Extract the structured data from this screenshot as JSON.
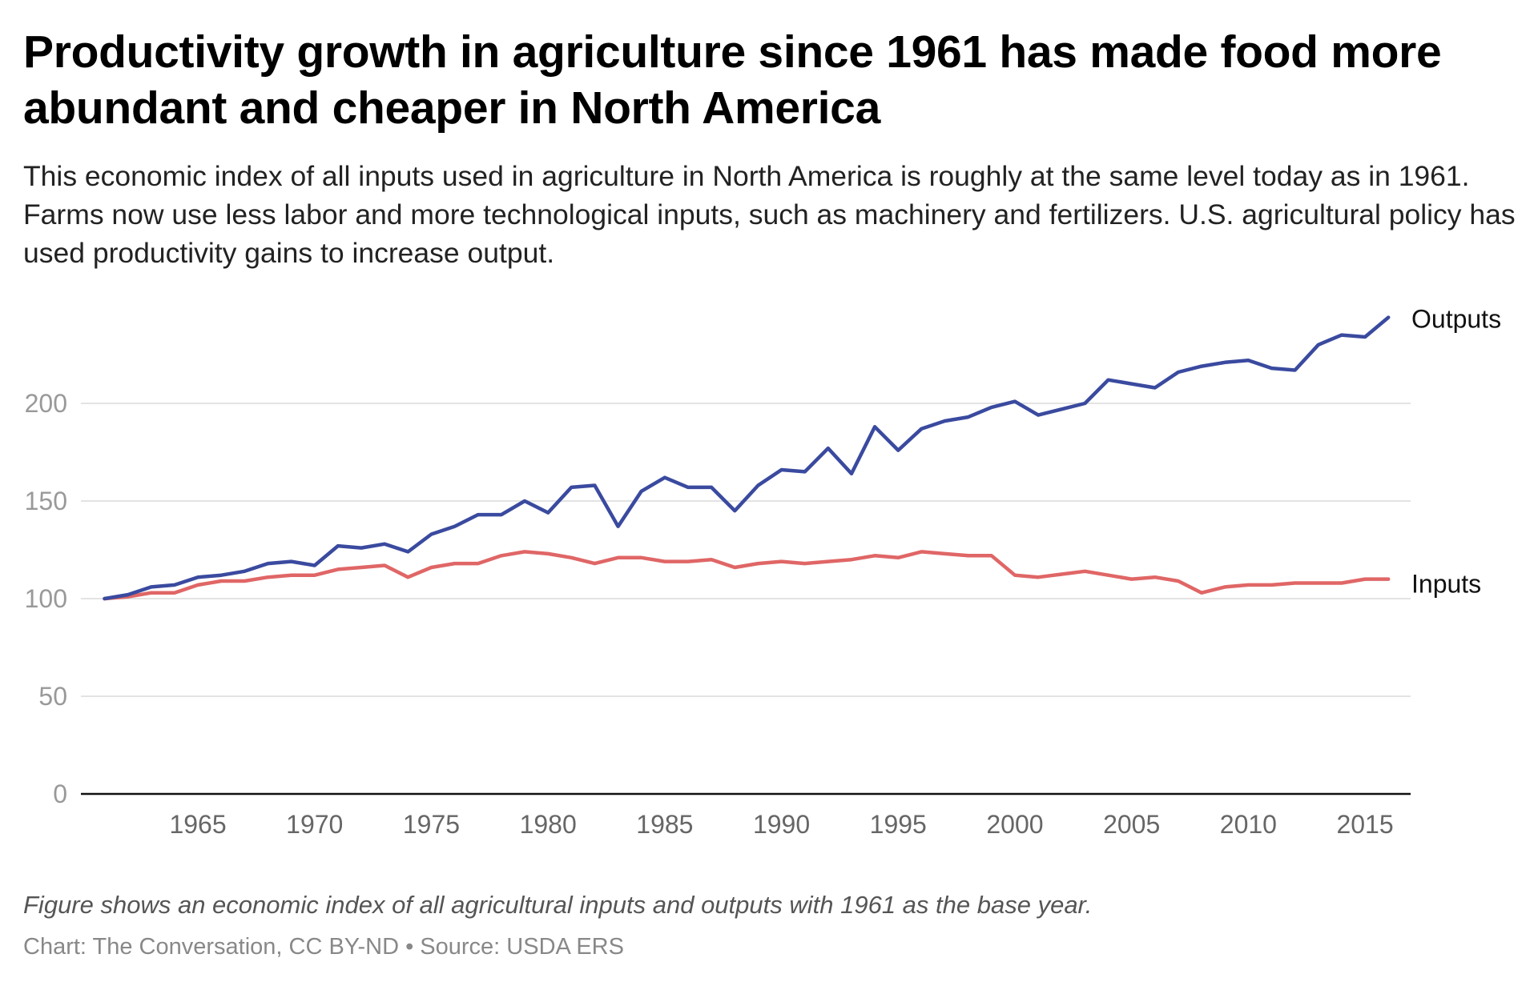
{
  "title": "Productivity growth in agriculture since 1961 has made food more abundant and cheaper in North America",
  "subtitle": "This economic index of all inputs used in agriculture in North America is roughly at the same level today as in 1961. Farms now use less labor and more technological inputs, such as machinery and fertilizers. U.S. agricultural policy has used productivity gains to increase output.",
  "note": "Figure shows an economic index of all agricultural inputs and outputs with 1961 as the base year.",
  "source": "Chart: The Conversation, CC BY-ND • Source: USDA ERS",
  "chart_data": {
    "type": "line",
    "title": "Productivity growth in agriculture since 1961 has made food more abundant and cheaper in North America",
    "xlabel": "",
    "ylabel": "",
    "xlim": [
      1961,
      2016
    ],
    "ylim": [
      0,
      240
    ],
    "grid": true,
    "legend": "direct labels at line ends",
    "y_ticks": [
      "0",
      "50",
      "100",
      "150",
      "200"
    ],
    "x_ticks": [
      "1965",
      "1970",
      "1975",
      "1980",
      "1985",
      "1990",
      "1995",
      "2000",
      "2005",
      "2010",
      "2015"
    ],
    "x": [
      1961,
      1962,
      1963,
      1964,
      1965,
      1966,
      1967,
      1968,
      1969,
      1970,
      1971,
      1972,
      1973,
      1974,
      1975,
      1976,
      1977,
      1978,
      1979,
      1980,
      1981,
      1982,
      1983,
      1984,
      1985,
      1986,
      1987,
      1988,
      1989,
      1990,
      1991,
      1992,
      1993,
      1994,
      1995,
      1996,
      1997,
      1998,
      1999,
      2000,
      2001,
      2002,
      2003,
      2004,
      2005,
      2006,
      2007,
      2008,
      2009,
      2010,
      2011,
      2012,
      2013,
      2014,
      2015,
      2016
    ],
    "series": [
      {
        "name": "Outputs",
        "color": "#3a4a9f",
        "values": [
          100,
          102,
          106,
          107,
          111,
          112,
          114,
          118,
          119,
          117,
          127,
          126,
          128,
          124,
          133,
          137,
          143,
          143,
          150,
          144,
          157,
          158,
          137,
          155,
          162,
          157,
          157,
          145,
          158,
          166,
          165,
          177,
          164,
          188,
          176,
          187,
          191,
          193,
          198,
          201,
          194,
          197,
          200,
          212,
          210,
          208,
          216,
          219,
          221,
          222,
          218,
          217,
          230,
          235,
          234,
          244
        ]
      },
      {
        "name": "Inputs",
        "color": "#e06666",
        "values": [
          100,
          101,
          103,
          103,
          107,
          109,
          109,
          111,
          112,
          112,
          115,
          116,
          117,
          111,
          116,
          118,
          118,
          122,
          124,
          123,
          121,
          118,
          121,
          121,
          119,
          119,
          120,
          116,
          118,
          119,
          118,
          119,
          120,
          122,
          121,
          124,
          123,
          122,
          122,
          112,
          111,
          112.5,
          114,
          112,
          110,
          111,
          109,
          103,
          106,
          107,
          107,
          108,
          108,
          108,
          110,
          110
        ]
      }
    ]
  }
}
